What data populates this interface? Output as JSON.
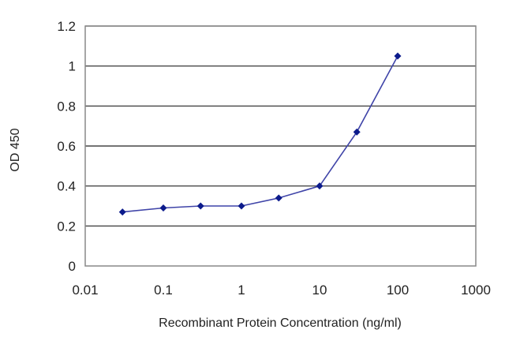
{
  "chart_data": {
    "type": "line",
    "title": "",
    "xlabel": "Recombinant Protein Concentration (ng/ml)",
    "ylabel": "OD 450",
    "x_scale": "log",
    "xlim": [
      0.01,
      1000
    ],
    "ylim": [
      0,
      1.2
    ],
    "x_ticks": [
      "0.01",
      "0.1",
      "1",
      "10",
      "100",
      "1000"
    ],
    "y_ticks": [
      "0",
      "0.2",
      "0.4",
      "0.6",
      "0.8",
      "1",
      "1.2"
    ],
    "grid": "horizontal",
    "series": [
      {
        "x": [
          0.03,
          0.1,
          0.3,
          1,
          3,
          10,
          30,
          100
        ],
        "y": [
          0.27,
          0.29,
          0.3,
          0.3,
          0.34,
          0.4,
          0.67,
          1.05
        ]
      }
    ],
    "colors": {
      "line": "#3f44a8",
      "marker": "#0c1b8c",
      "grid": "#222222",
      "frame": "#888888"
    }
  }
}
